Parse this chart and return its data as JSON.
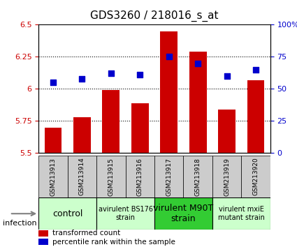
{
  "title": "GDS3260 / 218016_s_at",
  "samples": [
    "GSM213913",
    "GSM213914",
    "GSM213915",
    "GSM213916",
    "GSM213917",
    "GSM213918",
    "GSM213919",
    "GSM213920"
  ],
  "bar_values": [
    5.7,
    5.78,
    5.99,
    5.89,
    6.45,
    6.29,
    5.84,
    6.07
  ],
  "dot_values": [
    55,
    58,
    62,
    61,
    75,
    70,
    60,
    65
  ],
  "ylim_left": [
    5.5,
    6.5
  ],
  "ylim_right": [
    0,
    100
  ],
  "yticks_left": [
    5.5,
    5.75,
    6.0,
    6.25,
    6.5
  ],
  "ytick_labels_left": [
    "5.5",
    "5.75",
    "6",
    "6.25",
    "6.5"
  ],
  "yticks_right": [
    0,
    25,
    50,
    75,
    100
  ],
  "ytick_labels_right": [
    "0",
    "25",
    "50",
    "75",
    "100%"
  ],
  "bar_color": "#cc0000",
  "dot_color": "#0000cc",
  "bar_base": 5.5,
  "groups": [
    {
      "label": "control",
      "samples": [
        0,
        1
      ],
      "color": "#ccffcc",
      "fontsize": 9
    },
    {
      "label": "avirulent BS176\nstrain",
      "samples": [
        2,
        3
      ],
      "color": "#ccffcc",
      "fontsize": 7
    },
    {
      "label": "virulent M90T\nstrain",
      "samples": [
        4,
        5
      ],
      "color": "#33cc33",
      "fontsize": 9
    },
    {
      "label": "virulent mxiE\nmutant strain",
      "samples": [
        6,
        7
      ],
      "color": "#ccffcc",
      "fontsize": 7
    }
  ],
  "infection_label": "infection",
  "legend_bar_label": "transformed count",
  "legend_dot_label": "percentile rank within the sample",
  "grid_color": "#000000",
  "grid_linestyle": "dotted",
  "tick_label_color_left": "#cc0000",
  "tick_label_color_right": "#0000cc",
  "bg_plot": "#ffffff",
  "bg_xticklabel": "#cccccc",
  "title_fontsize": 11
}
